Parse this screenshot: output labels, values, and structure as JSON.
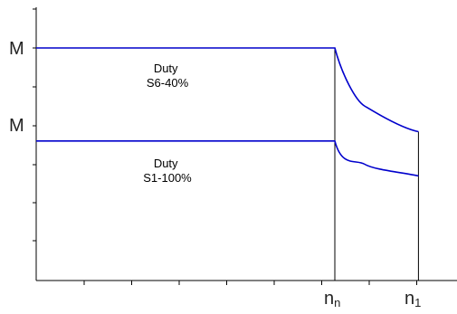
{
  "chart_data": {
    "type": "line",
    "x_ticks": [
      {
        "main": "n",
        "sub": "n"
      },
      {
        "main": "n",
        "sub": "1"
      }
    ],
    "y_ticks": [
      "M",
      "M"
    ],
    "series": [
      {
        "x": [
          0,
          1,
          1.1,
          1.28
        ],
        "y": [
          1.0,
          1.0,
          0.75,
          0.64
        ]
      },
      {
        "x": [
          0,
          1,
          1.1,
          1.28
        ],
        "y": [
          0.6,
          0.6,
          0.5,
          0.45
        ]
      }
    ],
    "annotations": [
      {
        "lines": [
          "Duty",
          "S6-40%"
        ]
      },
      {
        "lines": [
          "Duty",
          "S1-100%"
        ]
      }
    ],
    "grid": false,
    "colors": {
      "series": "#0000cc",
      "axis": "#000000"
    }
  }
}
